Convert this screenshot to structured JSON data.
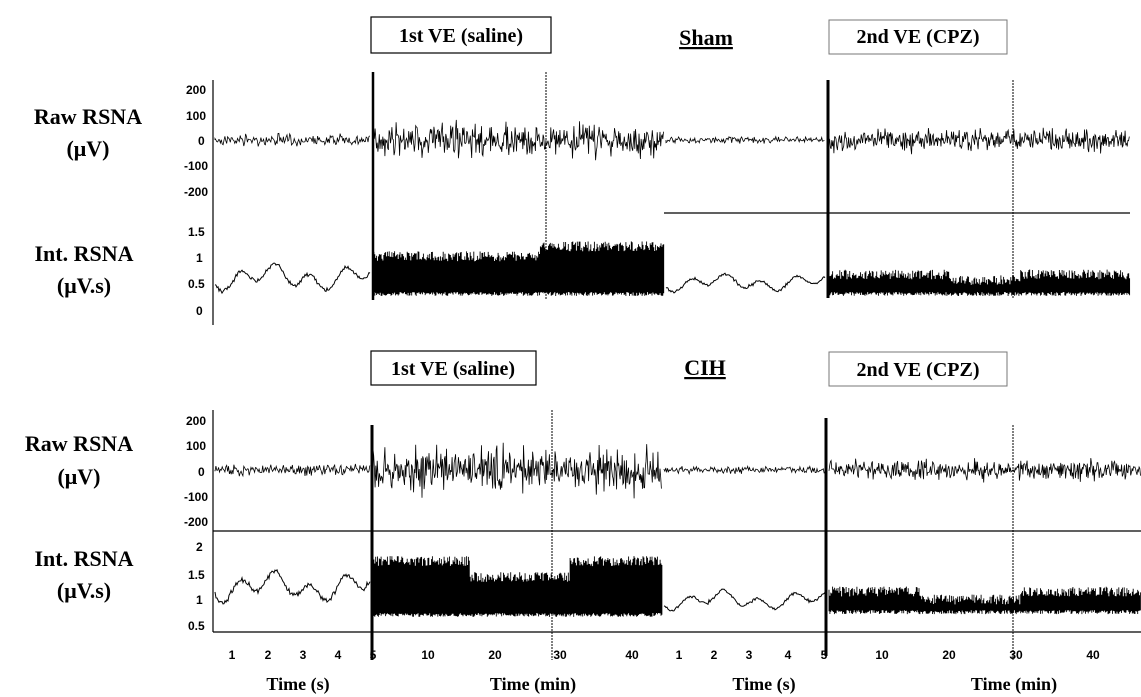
{
  "panels": [
    {
      "group": "Sham",
      "phase1_label": "1st VE (saline)",
      "phase2_label": "2nd VE (CPZ)",
      "raw_label_line1": "Raw RSNA",
      "raw_label_line2": "(μV)",
      "int_label_line1": "Int. RSNA",
      "int_label_line2": "(μV.s)",
      "raw_ticks": [
        "200",
        "100",
        "0",
        "-100",
        "-200"
      ],
      "int_ticks": [
        "1.5",
        "1",
        "0.5",
        "0"
      ]
    },
    {
      "group": "CIH",
      "phase1_label": "1st VE (saline)",
      "phase2_label": "2nd VE (CPZ)",
      "raw_label_line1": "Raw RSNA",
      "raw_label_line2": "(μV)",
      "int_label_line1": "Int. RSNA",
      "int_label_line2": "(μV.s)",
      "raw_ticks": [
        "200",
        "100",
        "0",
        "-100",
        "-200"
      ],
      "int_ticks": [
        "2",
        "1.5",
        "1",
        "0.5"
      ]
    }
  ],
  "xaxis": {
    "seg1_ticks": [
      "1",
      "2",
      "3",
      "4",
      "5"
    ],
    "seg2_ticks": [
      "10",
      "20",
      "30",
      "40"
    ],
    "seg3_ticks": [
      "1",
      "2",
      "3",
      "4",
      "5"
    ],
    "seg4_ticks": [
      "10",
      "20",
      "30",
      "40"
    ],
    "time_s_label": "Time (s)",
    "time_min_label": "Time (min)"
  },
  "chart_data": {
    "type": "line",
    "panels": [
      {
        "group": "Sham",
        "raw": {
          "ylim": [
            -200,
            200
          ],
          "baseline_s1_amp": 30,
          "saline_amp": 90,
          "baseline_s2_amp": 18,
          "cpz_amp": 60
        },
        "integrated": {
          "ylim": [
            0,
            1.5
          ],
          "baseline_s1_mean": 0.65,
          "saline_range": [
            0.3,
            1.25
          ],
          "baseline_s2_mean": 0.55,
          "cpz_range": [
            0.3,
            0.8
          ]
        }
      },
      {
        "group": "CIH",
        "raw": {
          "ylim": [
            -200,
            200
          ],
          "baseline_s1_amp": 35,
          "saline_amp": 120,
          "baseline_s2_amp": 20,
          "cpz_amp": 55
        },
        "integrated": {
          "ylim": [
            0.5,
            2
          ],
          "baseline_s1_mean": 1.25,
          "saline_range": [
            0.7,
            1.8
          ],
          "baseline_s2_mean": 1.0,
          "cpz_range": [
            0.75,
            1.25
          ]
        }
      }
    ]
  }
}
